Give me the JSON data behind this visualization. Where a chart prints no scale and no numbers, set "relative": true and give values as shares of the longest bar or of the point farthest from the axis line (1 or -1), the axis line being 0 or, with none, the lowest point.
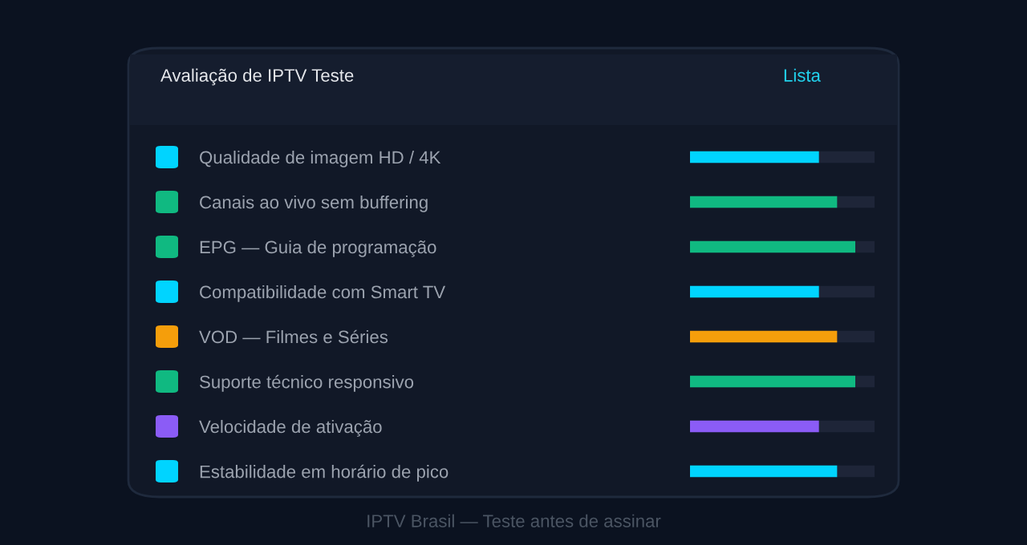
{
  "chart_data": {
    "type": "bar",
    "orientation": "horizontal",
    "relative": true,
    "title": "Avaliação de IPTV Teste",
    "subtitle": "Lista",
    "categories": [
      "Qualidade de imagem HD / 4K",
      "Canais ao vivo sem buffering",
      "EPG — Guia de programação",
      "Compatibilidade com Smart TV",
      "VOD — Filmes e Séries",
      "Suporte técnico responsivo",
      "Velocidade de ativação",
      "Estabilidade em horário de pico"
    ],
    "values": [
      0.78,
      0.89,
      1,
      0.78,
      0.89,
      1,
      0.78,
      0.89
    ],
    "colors": [
      "#00d4ff",
      "#10b981",
      "#10b981",
      "#00d4ff",
      "#f59e0b",
      "#10b981",
      "#8b5cf6",
      "#00d4ff"
    ],
    "annotations": [
      "IPTV Brasil — Teste antes de assinar"
    ],
    "data_labels": false
  }
}
